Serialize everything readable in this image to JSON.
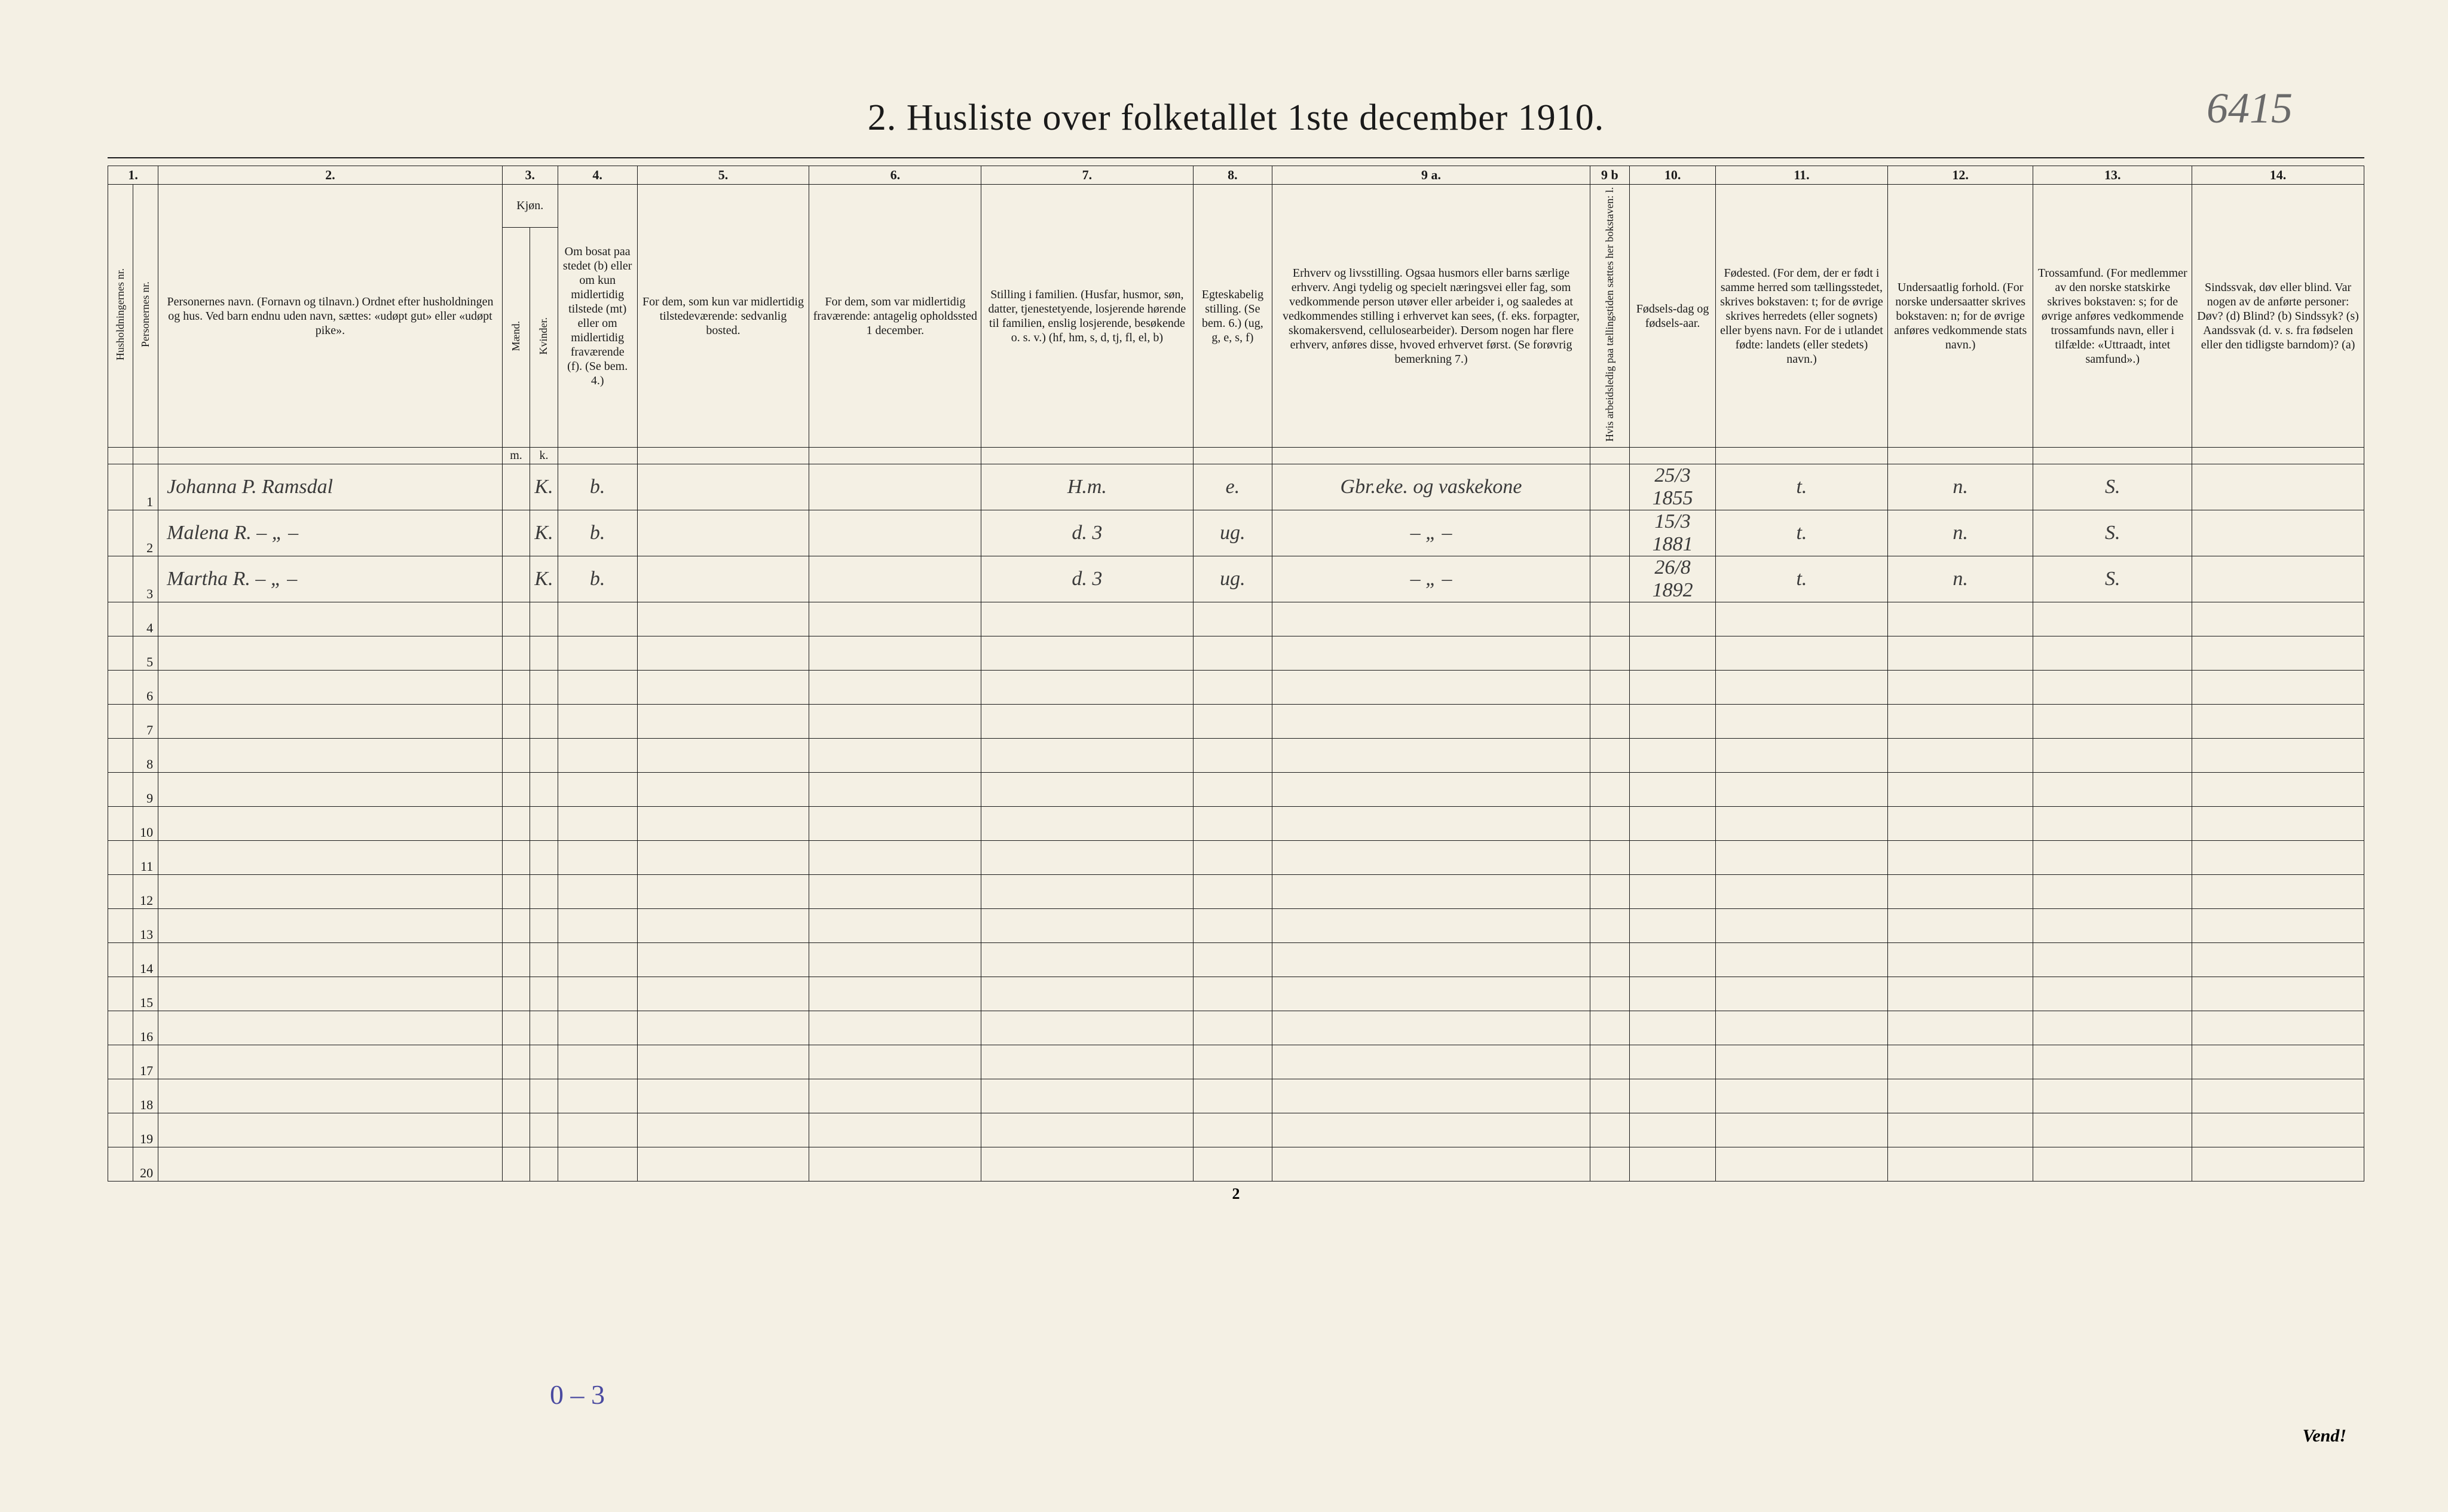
{
  "corner_note": "6415",
  "title": "2.  Husliste over folketallet 1ste december 1910.",
  "colnums": [
    "1.",
    "2.",
    "3.",
    "4.",
    "5.",
    "6.",
    "7.",
    "8.",
    "9 a.",
    "9 b",
    "10.",
    "11.",
    "12.",
    "13.",
    "14."
  ],
  "headers": {
    "h_nr": "Husholdningernes nr.",
    "p_nr": "Personernes nr.",
    "name": "Personernes navn.\n(Fornavn og tilnavn.)\nOrdnet efter husholdningen og hus.\nVed barn endnu uden navn, sættes: «udøpt gut» eller «udøpt pike».",
    "kjon": "Kjøn.",
    "kjon_sub": "Mænd.",
    "kjon_sub2": "Kvinder.",
    "bosat": "Om bosat paa stedet (b) eller om kun midlertidig tilstede (mt) eller om midlertidig fraværende (f). (Se bem. 4.)",
    "c5": "For dem, som kun var midlertidig tilstedeværende:\nsedvanlig bosted.",
    "c6": "For dem, som var midlertidig fraværende:\nantagelig opholdssted 1 december.",
    "c7": "Stilling i familien.\n(Husfar, husmor, søn, datter, tjenestetyende, losjerende hørende til familien, enslig losjerende, besøkende o. s. v.)\n(hf, hm, s, d, tj, fl, el, b)",
    "c8": "Egteskabelig stilling.\n(Se bem. 6.)\n(ug, g, e, s, f)",
    "c9a": "Erhverv og livsstilling.\nOgsaa husmors eller barns særlige erhverv.\nAngi tydelig og specielt næringsvei eller fag, som vedkommende person utøver eller arbeider i, og saaledes at vedkommendes stilling i erhvervet kan sees, (f. eks. forpagter, skomakersvend, cellulosearbeider). Dersom nogen har flere erhverv, anføres disse, hvoved erhvervet først.\n(Se forøvrig bemerkning 7.)",
    "c9b": "Hvis arbeidsledig paa tællingstiden sættes her bokstaven: l.",
    "c10": "Fødsels-dag og fødsels-aar.",
    "c11": "Fødested.\n(For dem, der er født i samme herred som tællingsstedet, skrives bokstaven: t; for de øvrige skrives herredets (eller sognets) eller byens navn. For de i utlandet fødte: landets (eller stedets) navn.)",
    "c12": "Undersaatlig forhold.\n(For norske undersaatter skrives bokstaven: n; for de øvrige anføres vedkommende stats navn.)",
    "c13": "Trossamfund.\n(For medlemmer av den norske statskirke skrives bokstaven: s; for de øvrige anføres vedkommende trossamfunds navn, eller i tilfælde: «Uttraadt, intet samfund».)",
    "c14": "Sindssvak, døv eller blind.\nVar nogen av de anførte personer:\nDøv?       (d)\nBlind?      (b)\nSindssyk? (s)\nAandssvak (d. v. s. fra fødselen eller den tidligste barndom)? (a)",
    "mk_m": "m.",
    "mk_k": "k."
  },
  "rows": [
    {
      "n": "1",
      "name": "Johanna P. Ramsdal",
      "m": "",
      "k": "K.",
      "bosat": "b.",
      "c5": "",
      "c6": "",
      "c7": "H.m.",
      "c8": "e.",
      "c9a": "Gbr.eke. og vaskekone",
      "c9b": "",
      "c10": "25/3 1855",
      "c11": "t.",
      "c12": "n.",
      "c13": "S.",
      "c14": ""
    },
    {
      "n": "2",
      "name": "Malena R.   – „ –",
      "m": "",
      "k": "K.",
      "bosat": "b.",
      "c5": "",
      "c6": "",
      "c7": "d.        3",
      "c8": "ug.",
      "c9a": "– „ –",
      "c9b": "",
      "c10": "15/3 1881",
      "c11": "t.",
      "c12": "n.",
      "c13": "S.",
      "c14": ""
    },
    {
      "n": "3",
      "name": "Martha R.   – „ –",
      "m": "",
      "k": "K.",
      "bosat": "b.",
      "c5": "",
      "c6": "",
      "c7": "d.        3",
      "c8": "ug.",
      "c9a": "– „ –",
      "c9b": "",
      "c10": "26/8 1892",
      "c11": "t.",
      "c12": "n.",
      "c13": "S.",
      "c14": ""
    },
    {
      "n": "4"
    },
    {
      "n": "5"
    },
    {
      "n": "6"
    },
    {
      "n": "7"
    },
    {
      "n": "8"
    },
    {
      "n": "9"
    },
    {
      "n": "10"
    },
    {
      "n": "11"
    },
    {
      "n": "12"
    },
    {
      "n": "13"
    },
    {
      "n": "14"
    },
    {
      "n": "15"
    },
    {
      "n": "16"
    },
    {
      "n": "17"
    },
    {
      "n": "18"
    },
    {
      "n": "19"
    },
    {
      "n": "20"
    }
  ],
  "footer_annot": "0 – 3",
  "page_number": "2",
  "vend": "Vend!",
  "colors": {
    "paper": "#f4f0e4",
    "ink": "#1a1a1a",
    "handwriting": "#3a3a3a",
    "pencil_blue": "#4a4aa0"
  }
}
